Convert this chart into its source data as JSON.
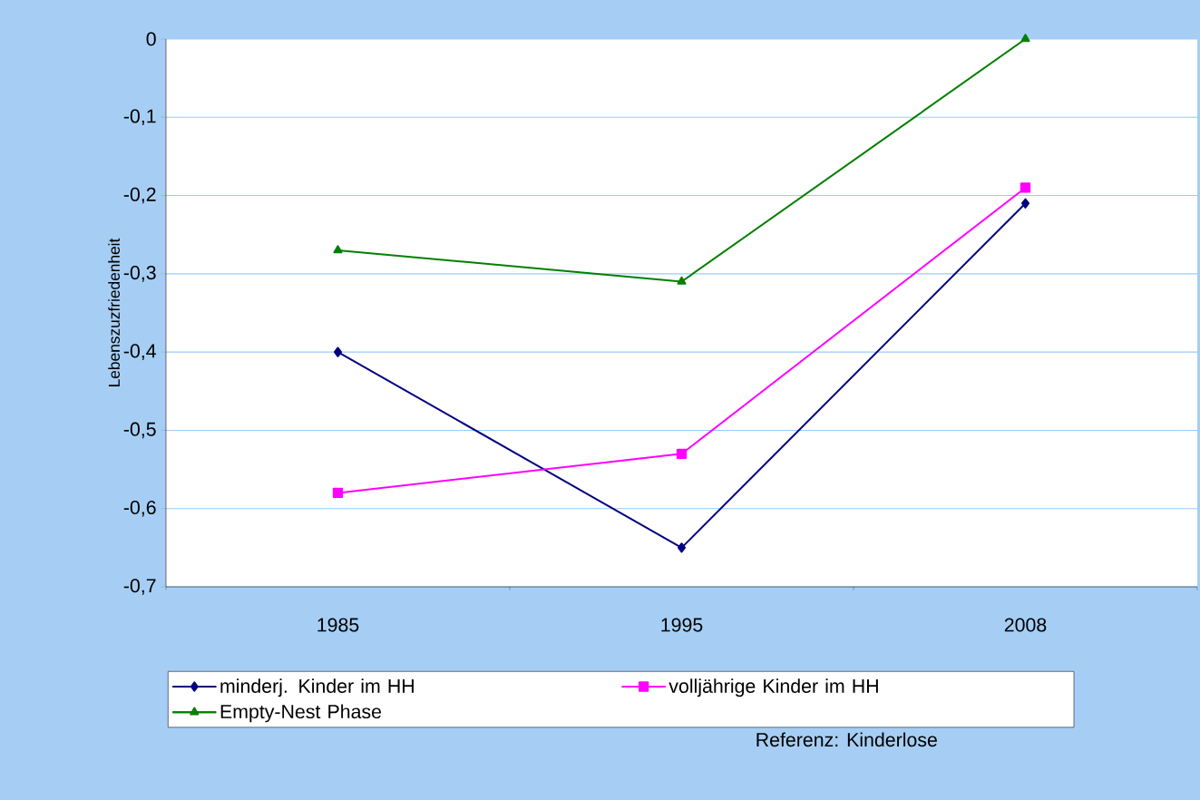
{
  "chart_data": {
    "type": "line",
    "ylabel": "Lebenszuzfriedenheit",
    "categories": [
      "1985",
      "1995",
      "2008"
    ],
    "series": [
      {
        "name": "minderj. Kinder im HH",
        "color": "#000080",
        "marker": "diamond",
        "values": [
          -0.4,
          -0.65,
          -0.21
        ]
      },
      {
        "name": "volljährige Kinder im HH",
        "color": "#ff00ff",
        "marker": "square",
        "values": [
          -0.58,
          -0.53,
          -0.19
        ]
      },
      {
        "name": "Empty-Nest Phase",
        "color": "#008000",
        "marker": "triangle",
        "values": [
          -0.27,
          -0.31,
          0.0
        ]
      }
    ],
    "ylim": [
      -0.7,
      0
    ],
    "yticks": [
      {
        "value": -0.7,
        "label": "-0,7"
      },
      {
        "value": -0.6,
        "label": "-0,6"
      },
      {
        "value": -0.5,
        "label": "-0,5"
      },
      {
        "value": -0.4,
        "label": "-0,4"
      },
      {
        "value": -0.3,
        "label": "-0,3"
      },
      {
        "value": -0.2,
        "label": "-0,2"
      },
      {
        "value": -0.1,
        "label": "-0,1"
      },
      0
    ],
    "grid": "y",
    "legend": "bottom",
    "line_style": "solid",
    "annotations": [
      "Referenz: Kinderlose"
    ]
  }
}
